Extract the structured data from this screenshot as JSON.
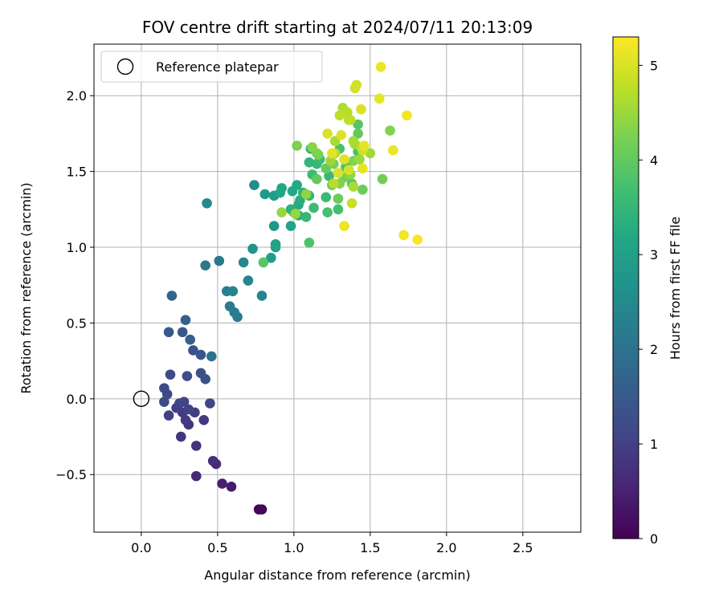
{
  "chart_data": {
    "type": "scatter",
    "title": "FOV centre drift starting at 2024/07/11 20:13:09",
    "xlabel": "Angular distance from reference (arcmin)",
    "ylabel": "Rotation from reference (arcmin)",
    "xlim": [
      -0.31,
      2.88
    ],
    "ylim": [
      -0.88,
      2.34
    ],
    "xticks": [
      0.0,
      0.5,
      1.0,
      1.5,
      2.0,
      2.5
    ],
    "xtick_labels": [
      "0.0",
      "0.5",
      "1.0",
      "1.5",
      "2.0",
      "2.5"
    ],
    "yticks": [
      -0.5,
      0.0,
      0.5,
      1.0,
      1.5,
      2.0
    ],
    "ytick_labels": [
      "−0.5",
      "0.0",
      "0.5",
      "1.0",
      "1.5",
      "2.0"
    ],
    "grid": true,
    "legend": {
      "placement": "top-left",
      "entries": [
        "Reference platepar"
      ]
    },
    "reference_point": {
      "x": 0.0,
      "y": 0.0,
      "label": "Reference platepar"
    },
    "colormap": "viridis",
    "colorbar": {
      "label": "Hours from first FF file",
      "range": [
        0,
        5.3
      ],
      "ticks": [
        0,
        1,
        2,
        3,
        4,
        5
      ],
      "tick_labels": [
        "0",
        "1",
        "2",
        "3",
        "4",
        "5"
      ]
    },
    "points": [
      [
        0.77,
        -0.73,
        0.05
      ],
      [
        0.79,
        -0.73,
        0.1
      ],
      [
        0.59,
        -0.58,
        0.4
      ],
      [
        0.53,
        -0.56,
        0.45
      ],
      [
        0.36,
        -0.51,
        0.6
      ],
      [
        0.49,
        -0.43,
        0.6
      ],
      [
        0.47,
        -0.41,
        0.7
      ],
      [
        0.36,
        -0.31,
        0.75
      ],
      [
        0.26,
        -0.25,
        0.8
      ],
      [
        0.31,
        -0.17,
        0.85
      ],
      [
        0.29,
        -0.14,
        0.9
      ],
      [
        0.41,
        -0.14,
        0.9
      ],
      [
        0.35,
        -0.09,
        0.95
      ],
      [
        0.27,
        -0.09,
        0.95
      ],
      [
        0.23,
        -0.06,
        1.0
      ],
      [
        0.18,
        -0.11,
        1.0
      ],
      [
        0.31,
        -0.07,
        1.05
      ],
      [
        0.25,
        -0.03,
        1.1
      ],
      [
        0.28,
        -0.02,
        1.1
      ],
      [
        0.45,
        -0.03,
        1.1
      ],
      [
        0.15,
        0.07,
        1.15
      ],
      [
        0.17,
        0.03,
        1.2
      ],
      [
        0.15,
        -0.02,
        1.2
      ],
      [
        0.19,
        0.16,
        1.2
      ],
      [
        0.3,
        0.15,
        1.25
      ],
      [
        0.39,
        0.17,
        1.3
      ],
      [
        0.42,
        0.13,
        1.3
      ],
      [
        0.34,
        0.32,
        1.35
      ],
      [
        0.39,
        0.29,
        1.4
      ],
      [
        0.27,
        0.44,
        1.45
      ],
      [
        0.18,
        0.44,
        1.5
      ],
      [
        0.32,
        0.39,
        1.55
      ],
      [
        0.29,
        0.52,
        1.6
      ],
      [
        0.2,
        0.68,
        1.7
      ],
      [
        0.46,
        0.28,
        2.0
      ],
      [
        0.42,
        0.88,
        2.1
      ],
      [
        0.51,
        0.91,
        2.15
      ],
      [
        0.58,
        0.61,
        2.2
      ],
      [
        0.63,
        0.54,
        2.2
      ],
      [
        0.61,
        0.57,
        2.25
      ],
      [
        0.56,
        0.71,
        2.3
      ],
      [
        0.6,
        0.71,
        2.35
      ],
      [
        0.7,
        0.78,
        2.4
      ],
      [
        0.67,
        0.9,
        2.45
      ],
      [
        0.79,
        0.68,
        2.4
      ],
      [
        0.43,
        1.29,
        2.5
      ],
      [
        0.74,
        1.41,
        2.55
      ],
      [
        0.73,
        0.99,
        2.7
      ],
      [
        0.87,
        1.14,
        2.8
      ],
      [
        0.81,
        1.35,
        2.85
      ],
      [
        0.87,
        1.34,
        2.9
      ],
      [
        0.85,
        0.93,
        2.9
      ],
      [
        0.88,
        1.0,
        3.0
      ],
      [
        0.88,
        1.02,
        3.05
      ],
      [
        0.91,
        1.36,
        3.1
      ],
      [
        0.98,
        1.14,
        3.1
      ],
      [
        0.92,
        1.39,
        3.15
      ],
      [
        0.99,
        1.37,
        3.2
      ],
      [
        1.02,
        1.41,
        3.2
      ],
      [
        1.03,
        1.28,
        3.25
      ],
      [
        1.03,
        1.21,
        3.3
      ],
      [
        1.04,
        1.31,
        3.3
      ],
      [
        0.98,
        1.25,
        3.35
      ],
      [
        1.0,
        1.23,
        3.35
      ],
      [
        1.06,
        1.36,
        3.4
      ],
      [
        1.11,
        1.65,
        3.4
      ],
      [
        1.1,
        1.56,
        3.45
      ],
      [
        1.1,
        1.34,
        3.45
      ],
      [
        1.08,
        1.2,
        3.5
      ],
      [
        1.15,
        1.55,
        3.5
      ],
      [
        1.23,
        1.47,
        3.5
      ],
      [
        1.21,
        1.33,
        3.55
      ],
      [
        1.13,
        1.26,
        3.6
      ],
      [
        1.17,
        1.58,
        3.6
      ],
      [
        1.12,
        1.48,
        3.6
      ],
      [
        1.29,
        1.25,
        3.7
      ],
      [
        1.22,
        1.23,
        3.7
      ],
      [
        1.3,
        1.65,
        3.75
      ],
      [
        1.42,
        1.63,
        3.75
      ],
      [
        1.34,
        1.53,
        3.8
      ],
      [
        1.1,
        1.03,
        3.8
      ],
      [
        0.8,
        0.9,
        3.9
      ],
      [
        1.42,
        1.81,
        3.9
      ],
      [
        1.38,
        1.42,
        3.95
      ],
      [
        1.42,
        1.75,
        4.0
      ],
      [
        1.15,
        1.45,
        4.0
      ],
      [
        1.21,
        1.52,
        4.05
      ],
      [
        1.25,
        1.41,
        4.05
      ],
      [
        1.45,
        1.38,
        4.1
      ],
      [
        1.29,
        1.32,
        4.1
      ],
      [
        1.58,
        1.45,
        4.15
      ],
      [
        1.16,
        1.61,
        4.2
      ],
      [
        1.26,
        1.55,
        4.2
      ],
      [
        1.33,
        1.46,
        4.2
      ],
      [
        1.02,
        1.67,
        4.25
      ],
      [
        1.15,
        1.62,
        4.25
      ],
      [
        1.3,
        1.42,
        4.3
      ],
      [
        1.39,
        1.57,
        4.3
      ],
      [
        1.63,
        1.77,
        4.3
      ],
      [
        1.12,
        1.66,
        4.35
      ],
      [
        1.08,
        1.35,
        4.4
      ],
      [
        1.37,
        1.48,
        4.4
      ],
      [
        0.92,
        1.23,
        4.45
      ],
      [
        1.01,
        1.22,
        4.45
      ],
      [
        1.24,
        1.57,
        4.5
      ],
      [
        1.43,
        1.58,
        4.5
      ],
      [
        1.5,
        1.62,
        4.55
      ],
      [
        1.4,
        1.68,
        4.55
      ],
      [
        1.27,
        1.7,
        4.6
      ],
      [
        1.39,
        1.4,
        4.6
      ],
      [
        1.39,
        1.7,
        4.6
      ],
      [
        1.32,
        1.92,
        4.65
      ],
      [
        1.27,
        1.62,
        4.7
      ],
      [
        1.44,
        1.66,
        4.7
      ],
      [
        1.35,
        1.89,
        4.7
      ],
      [
        1.36,
        1.84,
        4.75
      ],
      [
        1.26,
        1.42,
        4.75
      ],
      [
        1.3,
        1.87,
        4.8
      ],
      [
        1.37,
        1.84,
        4.8
      ],
      [
        1.38,
        1.29,
        4.85
      ],
      [
        1.45,
        1.64,
        4.9
      ],
      [
        1.36,
        1.51,
        4.95
      ],
      [
        1.41,
        2.07,
        4.9
      ],
      [
        1.4,
        2.05,
        4.95
      ],
      [
        1.44,
        1.91,
        5.0
      ],
      [
        1.22,
        1.75,
        5.0
      ],
      [
        1.29,
        1.49,
        5.0
      ],
      [
        1.31,
        1.74,
        5.05
      ],
      [
        1.33,
        1.58,
        5.05
      ],
      [
        1.46,
        1.67,
        5.1
      ],
      [
        1.45,
        1.52,
        5.1
      ],
      [
        1.56,
        1.98,
        5.1
      ],
      [
        1.25,
        1.62,
        5.1
      ],
      [
        1.33,
        1.14,
        5.15
      ],
      [
        1.57,
        2.19,
        5.15
      ],
      [
        1.65,
        1.64,
        5.15
      ],
      [
        1.72,
        1.08,
        5.2
      ],
      [
        1.74,
        1.87,
        5.2
      ],
      [
        1.81,
        1.05,
        5.25
      ]
    ]
  }
}
